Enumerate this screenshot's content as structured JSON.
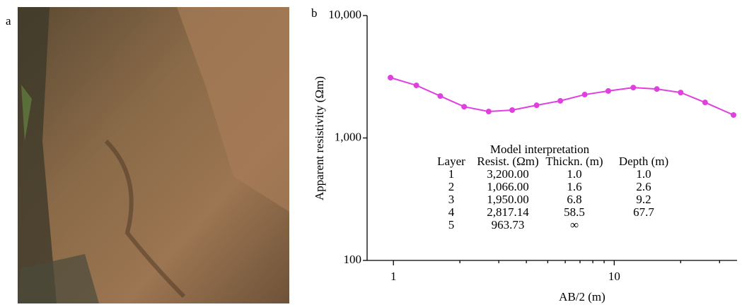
{
  "photo_label": "a",
  "chart_data": {
    "type": "line",
    "panel_label": "b",
    "x_label": "AB/2 (m)",
    "y_label": "Apparent resistivity (Ωm)",
    "log_x": true,
    "log_y": true,
    "xlim": [
      0.76,
      36
    ],
    "ylim": [
      100,
      10000
    ],
    "xticks": [
      1,
      10
    ],
    "xminor_ticks": [
      2,
      3,
      4,
      5,
      6,
      7,
      8,
      9,
      20,
      30
    ],
    "yticks": [
      {
        "value": 10000,
        "label": "10,000"
      },
      {
        "value": 1000,
        "label": "1,000"
      },
      100
    ],
    "x": [
      0.97,
      1.27,
      1.63,
      2.09,
      2.7,
      3.45,
      4.45,
      5.7,
      7.35,
      9.4,
      12.2,
      15.6,
      20,
      25.8,
      34.7
    ],
    "series": [
      {
        "name": null,
        "color": "#e040e0",
        "values": [
          3110,
          2690,
          2200,
          1800,
          1645,
          1690,
          1850,
          2010,
          2260,
          2420,
          2580,
          2510,
          2350,
          1950,
          1540
        ]
      }
    ],
    "table": {
      "title": "Model interpretation",
      "columns": [
        "Layer",
        "Resist. (Ωm)",
        "Thickn. (m)",
        "Depth (m)"
      ],
      "rows": [
        [
          "1",
          "3,200.00",
          "1.0",
          "1.0"
        ],
        [
          "2",
          "1,066.00",
          "1.6",
          "2.6"
        ],
        [
          "3",
          "1,950.00",
          "6.8",
          "9.2"
        ],
        [
          "4",
          "2,817.14",
          "58.5",
          "67.7"
        ],
        [
          "5",
          "963.73",
          "∞"
        ]
      ]
    }
  }
}
